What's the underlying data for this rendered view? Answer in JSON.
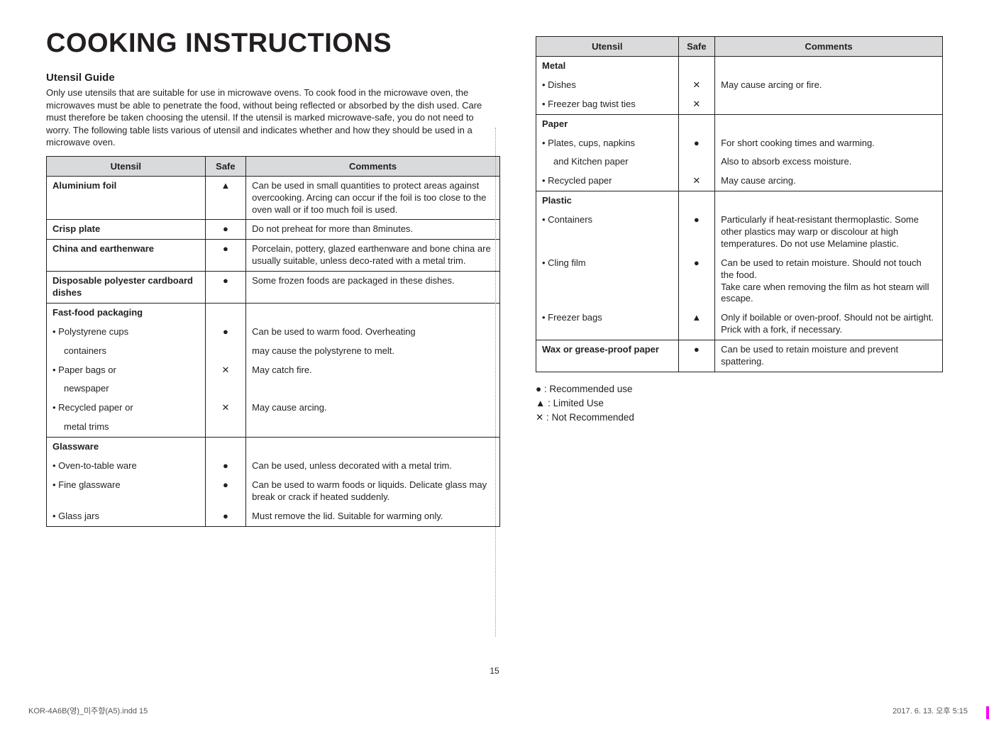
{
  "title": "COOKING INSTRUCTIONS",
  "subtitle": "Utensil Guide",
  "intro": "Only use utensils that are suitable for use in microwave ovens.\nTo cook food in the microwave oven, the microwaves must be able to penetrate the food, without being reflected or absorbed by the dish used. Care must therefore be taken choosing the utensil. If the utensil is marked microwave-safe, you do not need to worry. The following table lists various of utensil and indicates whether and how they should be used in a microwave oven.",
  "headers": {
    "utensil": "Utensil",
    "safe": "Safe",
    "comments": "Comments"
  },
  "symbols": {
    "circle": "●",
    "triangle": "▲",
    "cross": "✕"
  },
  "table1": [
    {
      "group": true,
      "rows": [
        {
          "utensil": "Aluminium foil",
          "bold": true,
          "safe": "▲",
          "comment": "Can be used in small quantities to protect areas against overcooking. Arcing can occur if the foil is too close to the oven wall or if too much foil is used."
        }
      ]
    },
    {
      "group": true,
      "rows": [
        {
          "utensil": "Crisp plate",
          "bold": true,
          "safe": "●",
          "comment": "Do not preheat for more than 8minutes."
        }
      ]
    },
    {
      "group": true,
      "rows": [
        {
          "utensil": "China and earthenware",
          "bold": true,
          "safe": "●",
          "comment": "Porcelain, pottery, glazed earthenware and bone china are usually suitable, unless deco-rated with a metal trim."
        }
      ]
    },
    {
      "group": true,
      "rows": [
        {
          "utensil": "Disposable polyester cardboard dishes",
          "bold": true,
          "safe": "●",
          "comment": "Some frozen foods are packaged in these dishes."
        }
      ]
    },
    {
      "group": true,
      "rows": [
        {
          "utensil": "Fast-food packaging",
          "bold": true,
          "safe": "",
          "comment": ""
        },
        {
          "utensil": "• Polystyrene cups",
          "safe": "●",
          "comment": "Can be used to warm food. Overheating"
        },
        {
          "utensil": "      containers",
          "indent": true,
          "safe": "",
          "comment": "may cause the polystyrene to melt."
        },
        {
          "utensil": "• Paper bags or",
          "safe": "✕",
          "comment": "May catch fire."
        },
        {
          "utensil": "      newspaper",
          "indent": true,
          "safe": "",
          "comment": ""
        },
        {
          "utensil": "• Recycled paper or",
          "safe": "✕",
          "comment": "May cause arcing."
        },
        {
          "utensil": "      metal trims",
          "indent": true,
          "safe": "",
          "comment": ""
        }
      ]
    },
    {
      "group": true,
      "last": true,
      "rows": [
        {
          "utensil": "Glassware",
          "bold": true,
          "safe": "",
          "comment": ""
        },
        {
          "utensil": "• Oven-to-table ware",
          "safe": "●",
          "comment": "Can be used, unless decorated with a metal trim."
        },
        {
          "utensil": "• Fine glassware",
          "safe": "●",
          "comment": "Can be used to warm foods or liquids. Delicate glass may break or crack if heated suddenly."
        },
        {
          "utensil": "• Glass jars",
          "safe": "●",
          "comment": "Must remove the lid. Suitable for warming only."
        }
      ]
    }
  ],
  "table2": [
    {
      "group": true,
      "rows": [
        {
          "utensil": "Metal",
          "bold": true,
          "safe": "",
          "comment": ""
        },
        {
          "utensil": "• Dishes",
          "safe": "✕",
          "comment": "May cause arcing or fire."
        },
        {
          "utensil": "• Freezer bag twist ties",
          "safe": "✕",
          "comment": ""
        }
      ]
    },
    {
      "group": true,
      "rows": [
        {
          "utensil": "Paper",
          "bold": true,
          "safe": "",
          "comment": ""
        },
        {
          "utensil": "• Plates, cups, napkins",
          "safe": "●",
          "comment": "For short cooking times and warming."
        },
        {
          "utensil": "   and Kitchen paper",
          "indent": true,
          "safe": "",
          "comment": "Also to absorb excess moisture."
        },
        {
          "utensil": "• Recycled paper",
          "safe": "✕",
          "comment": "May cause arcing."
        }
      ]
    },
    {
      "group": true,
      "rows": [
        {
          "utensil": "Plastic",
          "bold": true,
          "safe": "",
          "comment": ""
        },
        {
          "utensil": "• Containers",
          "safe": "●",
          "comment": "Particularly if heat-resistant thermoplastic. Some other plastics may warp or discolour at high temperatures. Do not use Melamine plastic."
        },
        {
          "utensil": "• Cling film",
          "safe": "●",
          "comment": "Can be used to retain moisture. Should not touch the food.\nTake care when removing the film as hot steam will escape."
        },
        {
          "utensil": "•  Freezer bags",
          "safe": "▲",
          "comment": "Only if boilable or oven-proof. Should not be airtight. Prick with a fork, if necessary."
        }
      ]
    },
    {
      "group": true,
      "last": true,
      "rows": [
        {
          "utensil": "Wax or grease-proof paper",
          "bold": true,
          "safe": "●",
          "comment": "Can be used to retain moisture and prevent spattering."
        }
      ]
    }
  ],
  "legend": {
    "line1": "● : Recommended use",
    "line2": "▲ : Limited Use",
    "line3": "✕ : Not Recommended"
  },
  "page_num": "15",
  "footer_left": "KOR-4A6B(영)_미주향(A5).indd   15",
  "footer_right": "2017. 6. 13.   오후 5:15"
}
